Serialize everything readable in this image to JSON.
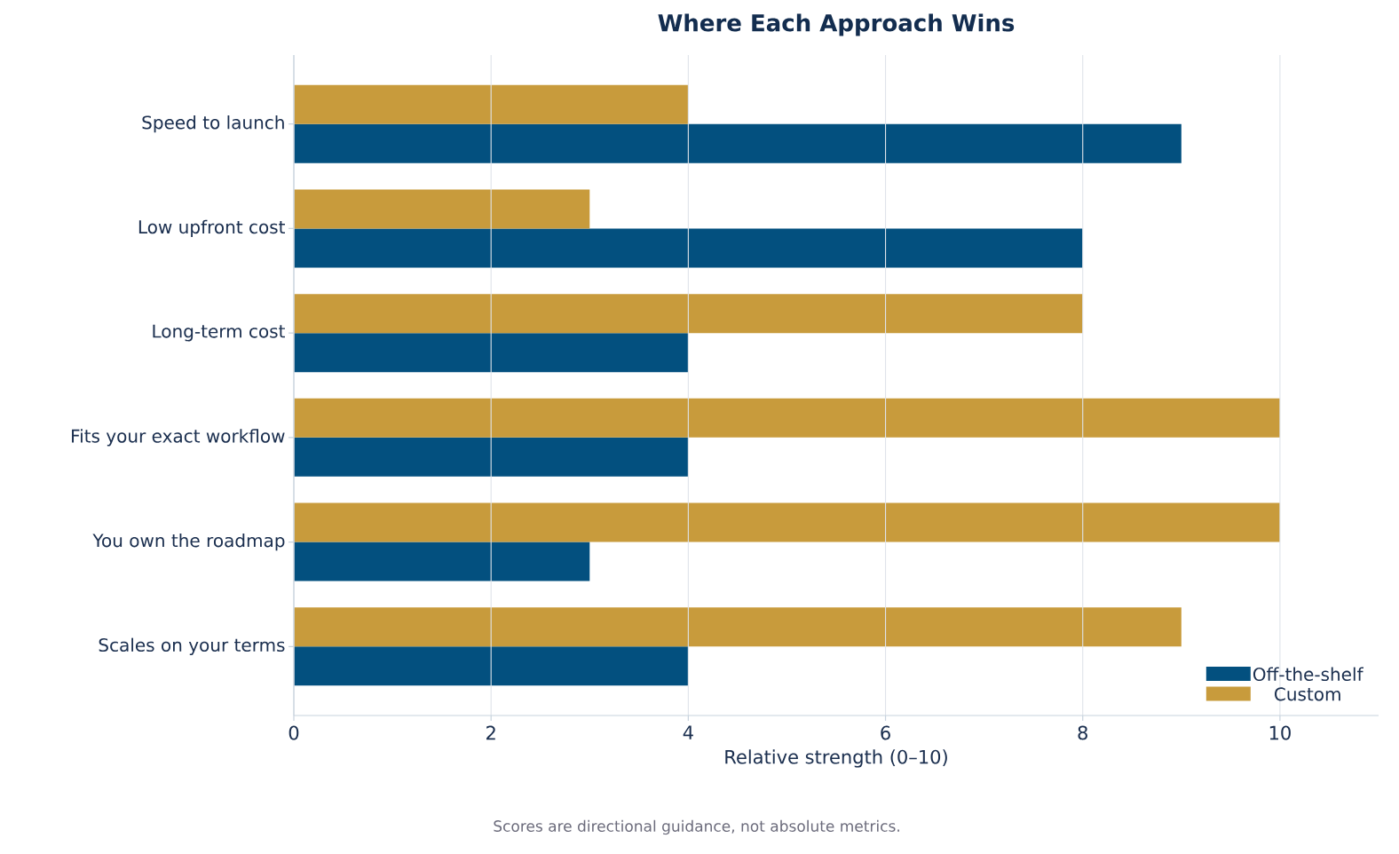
{
  "chart_data": {
    "type": "bar",
    "orientation": "horizontal",
    "title": "Where Each Approach Wins",
    "xlabel": "Relative strength (0–10)",
    "annotations": [
      "Scores are directional guidance, not absolute metrics."
    ],
    "categories": [
      "Speed to launch",
      "Low upfront cost",
      "Long-term cost",
      "Fits your exact workflow",
      "You own the roadmap",
      "Scales on your terms"
    ],
    "series": [
      {
        "name": "Off-the-shelf",
        "color": "#03507f",
        "values": [
          9,
          8,
          4,
          4,
          3,
          4
        ]
      },
      {
        "name": "Custom",
        "color": "#c89b3c",
        "values": [
          4,
          3,
          8,
          10,
          10,
          9
        ]
      }
    ],
    "xlim": [
      0,
      11
    ],
    "xticks": [
      0,
      2,
      4,
      6,
      8,
      10
    ],
    "grid": "x",
    "legend": "bottom right"
  }
}
